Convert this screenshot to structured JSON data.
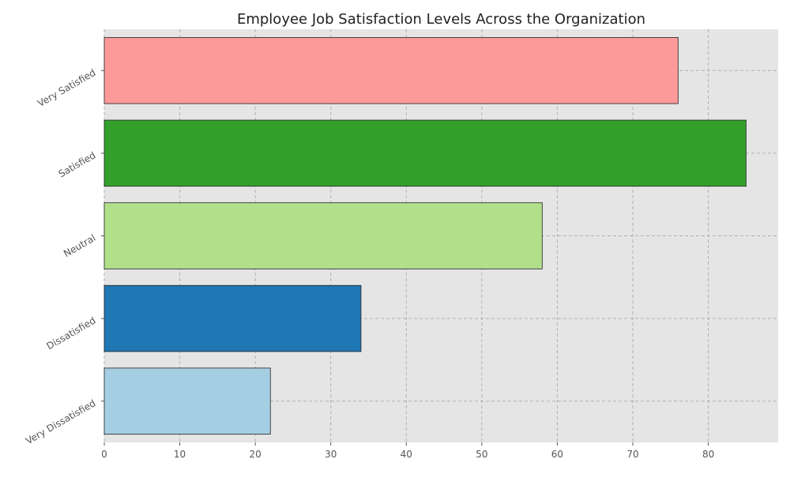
{
  "chart_data": {
    "type": "bar",
    "orientation": "horizontal",
    "title": "Employee Job Satisfaction Levels Across the Organization",
    "xlabel": "",
    "ylabel": "",
    "categories": [
      "Very Dissatisfied",
      "Dissatisfied",
      "Neutral",
      "Satisfied",
      "Very Satisfied"
    ],
    "values": [
      22,
      34,
      58,
      85,
      76
    ],
    "colors": [
      "#a6cee3",
      "#1f78b4",
      "#b2df8a",
      "#33a02c",
      "#fb9a99"
    ],
    "xlim": [
      0,
      89.25
    ],
    "xticks": [
      0,
      10,
      20,
      30,
      40,
      50,
      60,
      70,
      80
    ],
    "grid": true,
    "legend": "none",
    "style": {
      "plot_background": "#e5e5e5",
      "grid_color": "#b0b0b0",
      "bar_edge_color": "#222222"
    }
  }
}
